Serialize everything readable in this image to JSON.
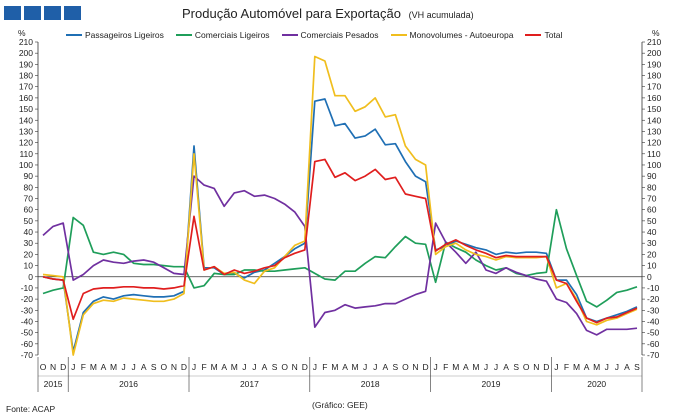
{
  "chart_data": {
    "type": "line",
    "title": "Produção Automóvel para Exportação",
    "subtitle": "(VH acumulada)",
    "ylabel_left": "%",
    "ylabel_right": "%",
    "ylim": [
      -70,
      210
    ],
    "y_ticks": [
      210,
      200,
      190,
      180,
      170,
      160,
      150,
      140,
      130,
      120,
      110,
      100,
      90,
      80,
      70,
      60,
      50,
      40,
      30,
      20,
      10,
      0,
      -10,
      -20,
      -30,
      -40,
      -50,
      -60,
      -70
    ],
    "grid": false,
    "legend_position": "top",
    "x": [
      "2015-10",
      "2015-11",
      "2015-12",
      "2016-01",
      "2016-02",
      "2016-03",
      "2016-04",
      "2016-05",
      "2016-06",
      "2016-07",
      "2016-08",
      "2016-09",
      "2016-10",
      "2016-11",
      "2016-12",
      "2017-01",
      "2017-02",
      "2017-03",
      "2017-04",
      "2017-05",
      "2017-06",
      "2017-07",
      "2017-08",
      "2017-09",
      "2017-10",
      "2017-11",
      "2017-12",
      "2018-01",
      "2018-02",
      "2018-03",
      "2018-04",
      "2018-05",
      "2018-06",
      "2018-07",
      "2018-08",
      "2018-09",
      "2018-10",
      "2018-11",
      "2018-12",
      "2019-01",
      "2019-02",
      "2019-03",
      "2019-04",
      "2019-05",
      "2019-06",
      "2019-07",
      "2019-08",
      "2019-09",
      "2019-10",
      "2019-11",
      "2019-12",
      "2020-01",
      "2020-02",
      "2020-03",
      "2020-04",
      "2020-05",
      "2020-06",
      "2020-07",
      "2020-08",
      "2020-09"
    ],
    "month_labels": [
      "O",
      "N",
      "D",
      "J",
      "F",
      "M",
      "A",
      "M",
      "J",
      "J",
      "A",
      "S",
      "O",
      "N",
      "D",
      "J",
      "F",
      "M",
      "A",
      "M",
      "J",
      "J",
      "A",
      "S",
      "O",
      "N",
      "D",
      "J",
      "F",
      "M",
      "A",
      "M",
      "J",
      "J",
      "A",
      "S",
      "O",
      "N",
      "D",
      "J",
      "F",
      "M",
      "A",
      "M",
      "J",
      "J",
      "A",
      "S",
      "O",
      "N",
      "D",
      "J",
      "F",
      "M",
      "A",
      "M",
      "J",
      "J",
      "A",
      "S"
    ],
    "year_labels": [
      {
        "label": "2015",
        "start": 0,
        "end": 2
      },
      {
        "label": "2016",
        "start": 3,
        "end": 14
      },
      {
        "label": "2017",
        "start": 15,
        "end": 26
      },
      {
        "label": "2018",
        "start": 27,
        "end": 38
      },
      {
        "label": "2019",
        "start": 39,
        "end": 50
      },
      {
        "label": "2020",
        "start": 51,
        "end": 59
      }
    ],
    "series": [
      {
        "name": "Passageiros Ligeiros",
        "color": "#1f6fb4",
        "values": [
          0,
          -2,
          -3,
          -67,
          -32,
          -22,
          -18,
          -20,
          -17,
          -16,
          -17,
          -18,
          -18,
          -17,
          -13,
          117,
          8,
          8,
          2,
          3,
          -1,
          4,
          6,
          12,
          18,
          25,
          30,
          157,
          159,
          135,
          137,
          124,
          126,
          132,
          118,
          119,
          103,
          90,
          85,
          24,
          27,
          32,
          29,
          26,
          24,
          20,
          22,
          21,
          22,
          22,
          21,
          -3,
          -3,
          -16,
          -37,
          -40,
          -37,
          -34,
          -31,
          -27
        ]
      },
      {
        "name": "Comerciais Ligeiros",
        "color": "#1f9e5a",
        "values": [
          -15,
          -12,
          -10,
          53,
          46,
          22,
          20,
          22,
          20,
          12,
          11,
          11,
          10,
          9,
          9,
          -10,
          -8,
          3,
          2,
          2,
          6,
          6,
          5,
          5,
          6,
          7,
          8,
          3,
          -2,
          -3,
          5,
          5,
          12,
          18,
          17,
          27,
          36,
          30,
          29,
          -5,
          31,
          26,
          22,
          15,
          10,
          6,
          8,
          3,
          1,
          3,
          4,
          60,
          25,
          1,
          -22,
          -27,
          -21,
          -14,
          -12,
          -9
        ]
      },
      {
        "name": "Comerciais Pesados",
        "color": "#7030a0",
        "values": [
          37,
          45,
          48,
          -3,
          2,
          10,
          15,
          13,
          12,
          14,
          15,
          13,
          8,
          3,
          2,
          90,
          82,
          79,
          63,
          75,
          77,
          72,
          73,
          70,
          65,
          58,
          45,
          -45,
          -32,
          -30,
          -25,
          -28,
          -27,
          -26,
          -24,
          -24,
          -20,
          -16,
          -13,
          48,
          31,
          22,
          12,
          22,
          6,
          3,
          8,
          4,
          1,
          -2,
          -4,
          -20,
          -23,
          -33,
          -48,
          -52,
          -47,
          -47,
          -47,
          -46
        ]
      },
      {
        "name": "Monovolumes - Autoeuropa",
        "color": "#f0be1e",
        "values": [
          2,
          1,
          0,
          -70,
          -34,
          -24,
          -21,
          -22,
          -19,
          -20,
          -21,
          -22,
          -22,
          -20,
          -15,
          110,
          6,
          9,
          3,
          4,
          -3,
          -6,
          5,
          8,
          18,
          28,
          32,
          197,
          193,
          162,
          162,
          148,
          152,
          160,
          143,
          145,
          117,
          105,
          100,
          20,
          27,
          30,
          24,
          20,
          18,
          15,
          18,
          17,
          17,
          17,
          18,
          -10,
          -6,
          -20,
          -40,
          -43,
          -39,
          -37,
          -33,
          -29
        ]
      },
      {
        "name": "Total",
        "color": "#e01e1e",
        "values": [
          0,
          -2,
          -3,
          -38,
          -15,
          -11,
          -10,
          -10,
          -9,
          -9,
          -10,
          -10,
          -11,
          -10,
          -8,
          54,
          6,
          9,
          2,
          6,
          3,
          5,
          8,
          10,
          17,
          21,
          24,
          103,
          105,
          89,
          93,
          86,
          90,
          96,
          87,
          89,
          74,
          72,
          70,
          23,
          29,
          33,
          28,
          24,
          21,
          17,
          19,
          18,
          18,
          18,
          18,
          -3,
          -6,
          -22,
          -37,
          -41,
          -37,
          -36,
          -32,
          -28
        ]
      }
    ]
  },
  "page": {
    "source": "Fonte: ACAP",
    "credit": "(Gráfico: GEE)"
  }
}
